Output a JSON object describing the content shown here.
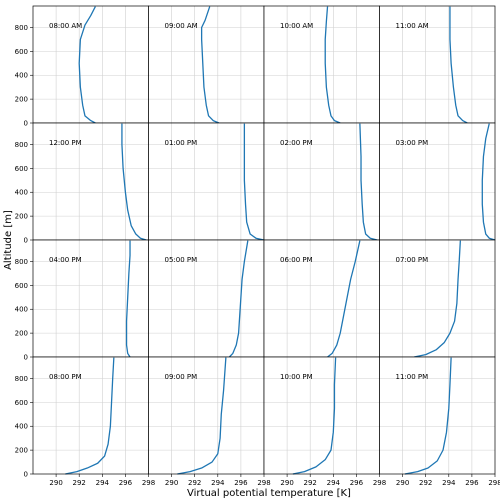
{
  "chart_data": {
    "type": "line",
    "xlabel": "Virtual potential temperature [K]",
    "ylabel": "Altitude [m]",
    "xlim": [
      288,
      298
    ],
    "ylim": [
      0,
      980
    ],
    "xticks": [
      290,
      292,
      294,
      296,
      298
    ],
    "yticks": [
      0,
      200,
      400,
      600,
      800
    ],
    "grid": true,
    "line_color": "#1f77b4",
    "panels": [
      {
        "label": "08:00 AM",
        "points": [
          [
            293.4,
            0
          ],
          [
            293.0,
            20
          ],
          [
            292.5,
            60
          ],
          [
            292.3,
            150
          ],
          [
            292.1,
            300
          ],
          [
            292.0,
            500
          ],
          [
            292.1,
            700
          ],
          [
            292.5,
            820
          ],
          [
            293.0,
            900
          ],
          [
            293.4,
            975
          ]
        ]
      },
      {
        "label": "09:00 AM",
        "points": [
          [
            294.1,
            0
          ],
          [
            293.6,
            20
          ],
          [
            293.2,
            60
          ],
          [
            293.0,
            150
          ],
          [
            292.8,
            300
          ],
          [
            292.7,
            500
          ],
          [
            292.6,
            700
          ],
          [
            292.6,
            800
          ],
          [
            292.9,
            860
          ],
          [
            293.3,
            975
          ]
        ]
      },
      {
        "label": "10:00 AM",
        "points": [
          [
            294.6,
            0
          ],
          [
            294.1,
            20
          ],
          [
            293.8,
            60
          ],
          [
            293.6,
            150
          ],
          [
            293.4,
            300
          ],
          [
            293.3,
            500
          ],
          [
            293.3,
            700
          ],
          [
            293.4,
            850
          ],
          [
            293.5,
            975
          ]
        ]
      },
      {
        "label": "11:00 AM",
        "points": [
          [
            295.6,
            0
          ],
          [
            295.2,
            20
          ],
          [
            294.8,
            60
          ],
          [
            294.6,
            150
          ],
          [
            294.4,
            300
          ],
          [
            294.2,
            500
          ],
          [
            294.1,
            700
          ],
          [
            294.1,
            850
          ],
          [
            294.1,
            975
          ]
        ]
      },
      {
        "label": "12:00 PM",
        "points": [
          [
            297.8,
            0
          ],
          [
            297.3,
            15
          ],
          [
            296.9,
            50
          ],
          [
            296.5,
            120
          ],
          [
            296.2,
            250
          ],
          [
            296.0,
            400
          ],
          [
            295.8,
            600
          ],
          [
            295.7,
            800
          ],
          [
            295.7,
            975
          ]
        ]
      },
      {
        "label": "01:00 PM",
        "points": [
          [
            298.0,
            0
          ],
          [
            297.3,
            15
          ],
          [
            296.8,
            50
          ],
          [
            296.5,
            150
          ],
          [
            296.4,
            300
          ],
          [
            296.3,
            500
          ],
          [
            296.3,
            700
          ],
          [
            296.3,
            975
          ]
        ]
      },
      {
        "label": "02:00 PM",
        "points": [
          [
            297.8,
            0
          ],
          [
            297.2,
            15
          ],
          [
            296.8,
            50
          ],
          [
            296.6,
            150
          ],
          [
            296.5,
            300
          ],
          [
            296.4,
            500
          ],
          [
            296.4,
            700
          ],
          [
            296.3,
            975
          ]
        ]
      },
      {
        "label": "03:00 PM",
        "points": [
          [
            298.0,
            0
          ],
          [
            297.5,
            15
          ],
          [
            297.2,
            50
          ],
          [
            297.0,
            150
          ],
          [
            296.9,
            300
          ],
          [
            296.9,
            500
          ],
          [
            297.0,
            700
          ],
          [
            297.2,
            850
          ],
          [
            297.5,
            975
          ]
        ]
      },
      {
        "label": "04:00 PM",
        "points": [
          [
            296.4,
            0
          ],
          [
            296.2,
            30
          ],
          [
            296.1,
            100
          ],
          [
            296.1,
            300
          ],
          [
            296.2,
            500
          ],
          [
            296.3,
            700
          ],
          [
            296.4,
            850
          ],
          [
            296.4,
            975
          ]
        ]
      },
      {
        "label": "05:00 PM",
        "points": [
          [
            295.0,
            0
          ],
          [
            295.3,
            30
          ],
          [
            295.6,
            100
          ],
          [
            295.8,
            200
          ],
          [
            295.9,
            350
          ],
          [
            296.0,
            500
          ],
          [
            296.1,
            650
          ],
          [
            296.3,
            800
          ],
          [
            296.6,
            975
          ]
        ]
      },
      {
        "label": "06:00 PM",
        "points": [
          [
            293.5,
            0
          ],
          [
            293.9,
            30
          ],
          [
            294.3,
            100
          ],
          [
            294.6,
            200
          ],
          [
            294.9,
            350
          ],
          [
            295.2,
            500
          ],
          [
            295.5,
            650
          ],
          [
            295.9,
            800
          ],
          [
            296.3,
            975
          ]
        ]
      },
      {
        "label": "07:00 PM",
        "points": [
          [
            291.0,
            0
          ],
          [
            292.0,
            20
          ],
          [
            292.9,
            60
          ],
          [
            293.6,
            120
          ],
          [
            294.1,
            200
          ],
          [
            294.5,
            300
          ],
          [
            294.7,
            450
          ],
          [
            294.8,
            650
          ],
          [
            294.9,
            800
          ],
          [
            295.0,
            975
          ]
        ]
      },
      {
        "label": "08:00 PM",
        "points": [
          [
            290.8,
            0
          ],
          [
            291.8,
            20
          ],
          [
            292.7,
            50
          ],
          [
            293.6,
            90
          ],
          [
            294.2,
            150
          ],
          [
            294.5,
            250
          ],
          [
            294.7,
            400
          ],
          [
            294.8,
            600
          ],
          [
            294.9,
            800
          ],
          [
            295.0,
            975
          ]
        ]
      },
      {
        "label": "09:00 PM",
        "points": [
          [
            290.5,
            0
          ],
          [
            291.6,
            20
          ],
          [
            292.6,
            50
          ],
          [
            293.5,
            100
          ],
          [
            294.0,
            170
          ],
          [
            294.2,
            300
          ],
          [
            294.3,
            500
          ],
          [
            294.5,
            700
          ],
          [
            294.7,
            975
          ]
        ]
      },
      {
        "label": "10:00 PM",
        "points": [
          [
            290.5,
            0
          ],
          [
            291.5,
            20
          ],
          [
            292.5,
            60
          ],
          [
            293.3,
            120
          ],
          [
            293.8,
            200
          ],
          [
            294.0,
            350
          ],
          [
            294.1,
            550
          ],
          [
            294.1,
            750
          ],
          [
            294.2,
            975
          ]
        ]
      },
      {
        "label": "11:00 PM",
        "points": [
          [
            290.2,
            0
          ],
          [
            291.3,
            20
          ],
          [
            292.2,
            50
          ],
          [
            293.0,
            110
          ],
          [
            293.5,
            200
          ],
          [
            293.8,
            350
          ],
          [
            294.0,
            550
          ],
          [
            294.1,
            750
          ],
          [
            294.2,
            975
          ]
        ]
      }
    ]
  }
}
